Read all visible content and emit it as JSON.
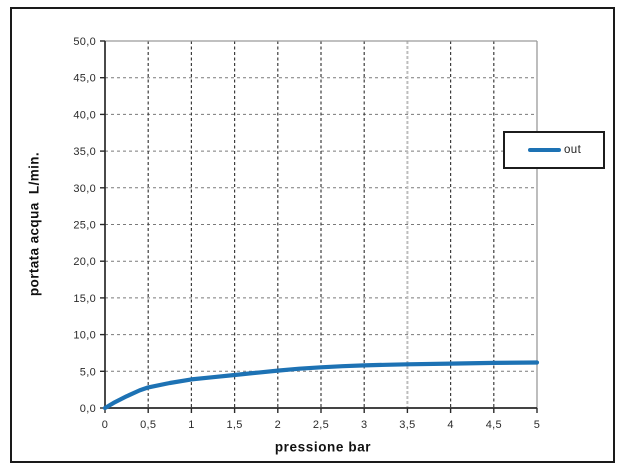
{
  "window": {
    "background": "#ffffff",
    "frame_color": "#1a1a1a"
  },
  "chart_data": {
    "type": "line",
    "title": "",
    "xlabel": "pressione bar",
    "ylabel": "portata acqua  L/min.",
    "xlim": [
      0,
      5
    ],
    "ylim": [
      0,
      50
    ],
    "x_ticks": [
      0,
      0.5,
      1,
      1.5,
      2,
      2.5,
      3,
      3.5,
      4,
      4.5,
      5
    ],
    "x_tick_labels": [
      "0",
      "0,5",
      "1",
      "1,5",
      "2",
      "2,5",
      "3",
      "3,5",
      "4",
      "4,5",
      "5"
    ],
    "y_ticks": [
      0,
      5,
      10,
      15,
      20,
      25,
      30,
      35,
      40,
      45,
      50
    ],
    "y_tick_labels": [
      "0,0",
      "5,0",
      "10,0",
      "15,0",
      "20,0",
      "25,0",
      "30,0",
      "35,0",
      "40,0",
      "45,0",
      "50,0"
    ],
    "grid": {
      "on": true,
      "vertical_color": "#3d3d3d",
      "horizontal_color": "#7a7a7a",
      "muted_x_gridlines": [
        3.5
      ],
      "muted_color": "#bdbdbd"
    },
    "axis_color": "#2a2a2a",
    "plot_border_color": "#9a9a9a",
    "legend": {
      "position": "right-overlapping-plot-border",
      "entries": [
        {
          "label": "out",
          "color": "#1d72b4"
        }
      ]
    },
    "series": [
      {
        "name": "out",
        "color": "#1d72b4",
        "x": [
          0,
          0.1,
          0.25,
          0.4,
          0.5,
          0.75,
          1,
          1.25,
          1.5,
          1.75,
          2,
          2.25,
          2.5,
          2.75,
          3,
          3.25,
          3.5,
          4,
          4.5,
          5
        ],
        "y": [
          0,
          0.7,
          1.6,
          2.4,
          2.8,
          3.4,
          3.9,
          4.2,
          4.5,
          4.8,
          5.1,
          5.35,
          5.55,
          5.7,
          5.8,
          5.88,
          5.95,
          6.05,
          6.15,
          6.2
        ]
      }
    ]
  }
}
